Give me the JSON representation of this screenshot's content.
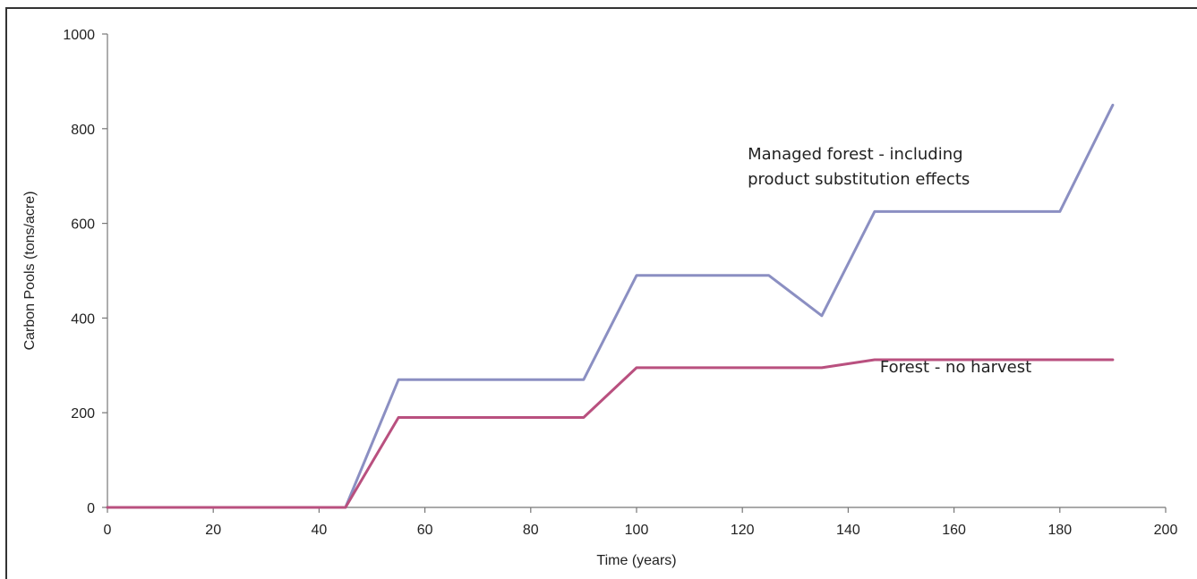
{
  "chart_data": {
    "type": "line",
    "xlabel": "Time (years)",
    "ylabel": "Carbon Pools (tons/acre)",
    "xlim": [
      0,
      200
    ],
    "ylim": [
      0,
      1000
    ],
    "x_ticks": [
      0,
      20,
      40,
      60,
      80,
      100,
      120,
      140,
      160,
      180,
      200
    ],
    "y_ticks": [
      0,
      200,
      400,
      600,
      800,
      1000
    ],
    "grid": false,
    "legend": "none",
    "series": [
      {
        "color": "#8b8fc2",
        "x": [
          0,
          45,
          55,
          90,
          100,
          125,
          135,
          145,
          180,
          190
        ],
        "y": [
          0,
          0,
          270,
          270,
          490,
          490,
          405,
          625,
          625,
          850
        ]
      },
      {
        "color": "#b9507f",
        "x": [
          0,
          45,
          55,
          90,
          100,
          135,
          145,
          190
        ],
        "y": [
          0,
          0,
          190,
          190,
          295,
          295,
          312,
          312
        ]
      }
    ],
    "annotations": [
      {
        "lines": [
          "Managed forest - including",
          "product substitution effects"
        ],
        "x": 121,
        "y": 735
      },
      {
        "lines": [
          "Forest - no harvest"
        ],
        "x": 146,
        "y": 285
      }
    ]
  }
}
